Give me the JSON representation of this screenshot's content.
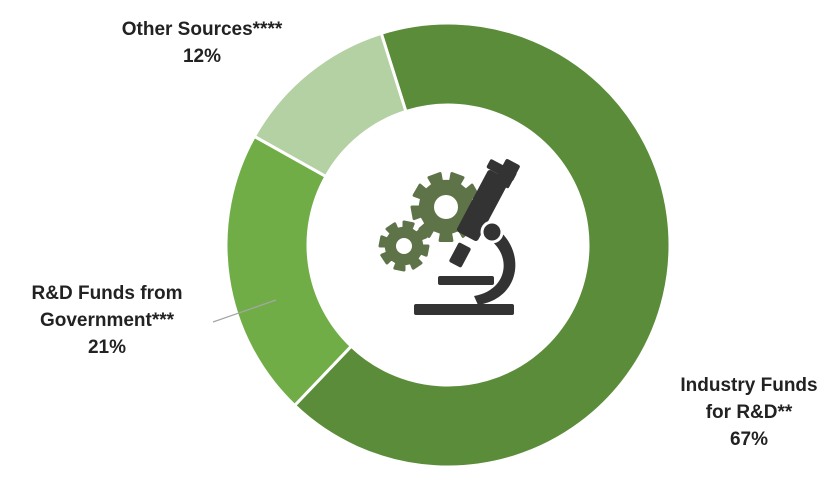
{
  "chart_data": {
    "type": "pie",
    "variant": "donut",
    "slices": [
      {
        "label_lines": [
          "Industry Funds",
          "for R&D**"
        ],
        "value": 67,
        "value_label": "67%",
        "color": "#5b8c3a"
      },
      {
        "label_lines": [
          "R&D Funds from",
          "Government***"
        ],
        "value": 21,
        "value_label": "21%",
        "color": "#70ad47"
      },
      {
        "label_lines": [
          "Other Sources****"
        ],
        "value": 12,
        "value_label": "12%",
        "color": "#b4d1a3"
      }
    ],
    "center_icon": "microscope-gears-icon",
    "icon_color": "#333333",
    "gear_color": "#5e7448"
  }
}
